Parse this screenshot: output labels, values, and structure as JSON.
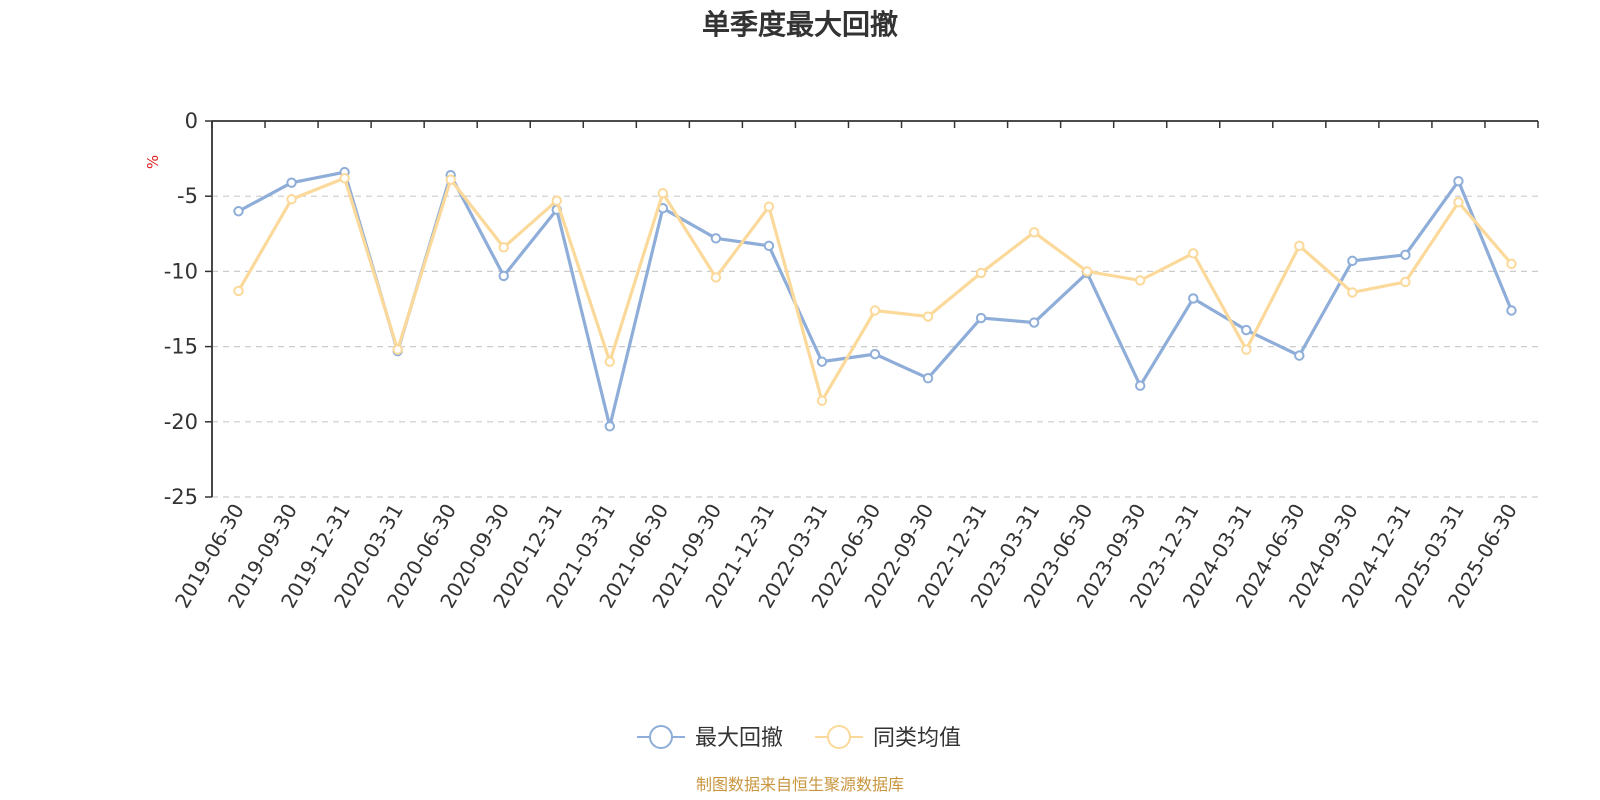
{
  "chart_data": {
    "type": "line",
    "title": "单季度最大回撤",
    "ylabel": "%",
    "xlabel": "",
    "ylim": [
      -25,
      0
    ],
    "yticks": [
      0,
      -5,
      -10,
      -15,
      -20,
      -25
    ],
    "grid": true,
    "legend_position": "bottom-center",
    "categories": [
      "2019-06-30",
      "2019-09-30",
      "2019-12-31",
      "2020-03-31",
      "2020-06-30",
      "2020-09-30",
      "2020-12-31",
      "2021-03-31",
      "2021-06-30",
      "2021-09-30",
      "2021-12-31",
      "2022-03-31",
      "2022-06-30",
      "2022-09-30",
      "2022-12-31",
      "2023-03-31",
      "2023-06-30",
      "2023-09-30",
      "2023-12-31",
      "2024-03-31",
      "2024-06-30",
      "2024-09-30",
      "2024-12-31",
      "2025-03-31",
      "2025-06-30"
    ],
    "series": [
      {
        "name": "最大回撤",
        "color": "#8eadd8",
        "values": [
          -6.0,
          -4.1,
          -3.4,
          -15.3,
          -3.6,
          -10.3,
          -5.9,
          -20.3,
          -5.8,
          -7.8,
          -8.3,
          -16.0,
          -15.5,
          -17.1,
          -13.1,
          -13.4,
          -10.1,
          -17.6,
          -11.8,
          -13.9,
          -15.6,
          -9.3,
          -8.9,
          -4.0,
          -12.6
        ]
      },
      {
        "name": "同类均值",
        "color": "#fbd99a",
        "values": [
          -11.3,
          -5.2,
          -3.8,
          -15.2,
          -3.9,
          -8.4,
          -5.3,
          -16.0,
          -4.8,
          -10.4,
          -5.7,
          -18.6,
          -12.6,
          -13.0,
          -10.1,
          -7.4,
          -10.0,
          -10.6,
          -8.8,
          -15.2,
          -8.3,
          -11.4,
          -10.7,
          -5.4,
          -9.5
        ]
      }
    ],
    "source_note": "制图数据来自恒生聚源数据库"
  }
}
